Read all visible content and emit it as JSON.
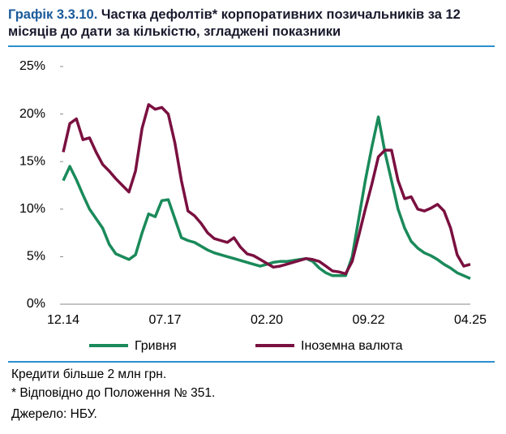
{
  "chart_data": {
    "type": "line",
    "title_label": "Графік 3.3.10.",
    "title": "Частка дефолтів* корпоративних позичальників за 12 місяців до дати за кількістю, згладжені показники",
    "x": [
      "12.14",
      "02.15",
      "04.15",
      "06.15",
      "08.15",
      "10.15",
      "12.15",
      "02.16",
      "04.16",
      "06.16",
      "08.16",
      "10.16",
      "12.16",
      "02.17",
      "04.17",
      "06.17",
      "08.17",
      "10.17",
      "12.17",
      "02.18",
      "04.18",
      "06.18",
      "08.18",
      "10.18",
      "12.18",
      "02.19",
      "04.19",
      "06.19",
      "08.19",
      "10.19",
      "12.19",
      "02.20",
      "04.20",
      "06.20",
      "08.20",
      "10.20",
      "12.20",
      "02.21",
      "04.21",
      "06.21",
      "08.21",
      "10.21",
      "12.21",
      "02.22",
      "04.22",
      "06.22",
      "08.22",
      "10.22",
      "12.22",
      "02.23",
      "04.23",
      "06.23",
      "08.23",
      "10.23",
      "12.23",
      "02.24",
      "04.24",
      "06.24",
      "08.24",
      "10.24",
      "12.24",
      "02.25",
      "04.25"
    ],
    "xticks": [
      "12.14",
      "07.17",
      "02.20",
      "09.22",
      "04.25"
    ],
    "series": [
      {
        "name": "Гривня",
        "color": "#1a8a5a",
        "values": [
          13,
          14.5,
          13.1,
          11.5,
          10,
          9,
          8,
          6.3,
          5.3,
          5.0,
          4.7,
          5.2,
          7.5,
          9.5,
          9.2,
          10.9,
          11,
          9,
          7,
          6.7,
          6.5,
          6.1,
          5.7,
          5.4,
          5.2,
          5.0,
          4.8,
          4.6,
          4.4,
          4.2,
          4,
          4.2,
          4.4,
          4.5,
          4.5,
          4.6,
          4.7,
          4.8,
          4.5,
          3.8,
          3.3,
          3,
          3,
          3,
          5,
          9,
          13,
          16.5,
          19.7,
          16,
          13,
          10,
          8,
          6.6,
          5.9,
          5.4,
          5.1,
          4.7,
          4.2,
          3.8,
          3.3,
          3.0,
          2.7
        ]
      },
      {
        "name": "Іноземна валюта",
        "color": "#7a1040",
        "values": [
          16,
          19,
          19.5,
          17.3,
          17.5,
          16,
          14.7,
          14,
          13.2,
          12.5,
          11.8,
          14,
          18.5,
          21,
          20.5,
          20.7,
          20,
          17,
          13,
          9.8,
          9.3,
          8.5,
          7.5,
          6.9,
          6.7,
          6.5,
          7,
          6,
          5.3,
          5.1,
          4.7,
          4.3,
          3.9,
          4,
          4.2,
          4.4,
          4.6,
          4.8,
          4.7,
          4.5,
          4,
          3.5,
          3.4,
          3.2,
          4.5,
          7.2,
          10,
          12.6,
          15.5,
          16.2,
          16.2,
          13,
          11.1,
          11.3,
          10,
          9.8,
          10.1,
          10.5,
          9.8,
          8,
          5.2,
          4,
          4.2
        ]
      }
    ],
    "ylim": [
      0,
      25
    ],
    "yticks": [
      {
        "value": 0,
        "label": "0%"
      },
      {
        "value": 5,
        "label": "5%"
      },
      {
        "value": 10,
        "label": "10%"
      },
      {
        "value": 15,
        "label": "15%"
      },
      {
        "value": 20,
        "label": "20%"
      },
      {
        "value": 25,
        "label": "25%"
      }
    ],
    "notes": [
      "Кредити більше 2 млн грн.",
      "* Відповідно до Положення № 351.",
      "Джерело: НБУ."
    ]
  }
}
